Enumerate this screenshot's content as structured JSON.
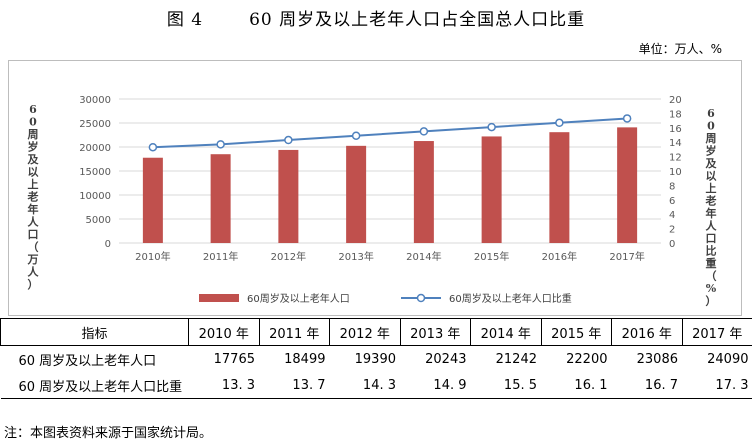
{
  "title": {
    "figure_label": "图 4",
    "text": "60 周岁及以上老年人口占全国总人口比重"
  },
  "unit": "单位：万人、%",
  "colors": {
    "bar": "#c0504d",
    "line": "#4f81bd",
    "grid": "#d9d9d9"
  },
  "chart_data": {
    "type": "bar+line",
    "categories": [
      "2010年",
      "2011年",
      "2012年",
      "2013年",
      "2014年",
      "2015年",
      "2016年",
      "2017年"
    ],
    "series": [
      {
        "name": "60周岁及以上老年人口",
        "type": "bar",
        "axis": "left",
        "values": [
          17765,
          18499,
          19390,
          20243,
          21242,
          22200,
          23086,
          24090
        ]
      },
      {
        "name": "60周岁及以上老年人口比重",
        "type": "line",
        "axis": "right",
        "values": [
          13.3,
          13.7,
          14.3,
          14.9,
          15.5,
          16.1,
          16.7,
          17.3
        ]
      }
    ],
    "y_left": {
      "label": "60周岁及以上老年人口（万人）",
      "range": [
        0,
        30000
      ],
      "ticks": [
        0,
        5000,
        10000,
        15000,
        20000,
        25000,
        30000
      ]
    },
    "y_right": {
      "label": "60周岁及以上老年人口比重（%）",
      "range": [
        0,
        20
      ],
      "ticks": [
        0,
        2,
        4,
        6,
        8,
        10,
        12,
        14,
        16,
        18,
        20
      ]
    },
    "grid": true,
    "legend": "bottom"
  },
  "table": {
    "header_label": "指标",
    "years": [
      "2010 年",
      "2011 年",
      "2012 年",
      "2013 年",
      "2014 年",
      "2015 年",
      "2016 年",
      "2017 年"
    ],
    "rows": [
      {
        "label": "60 周岁及以上老年人口",
        "values": [
          "17765",
          "18499",
          "19390",
          "20243",
          "21242",
          "22200",
          "23086",
          "24090"
        ]
      },
      {
        "label": "60 周岁及以上老年人口比重",
        "values": [
          "13. 3",
          "13. 7",
          "14. 3",
          "14. 9",
          "15. 5",
          "16. 1",
          "16. 7",
          "17. 3"
        ]
      }
    ]
  },
  "note": "注：本图表资料来源于国家统计局。"
}
